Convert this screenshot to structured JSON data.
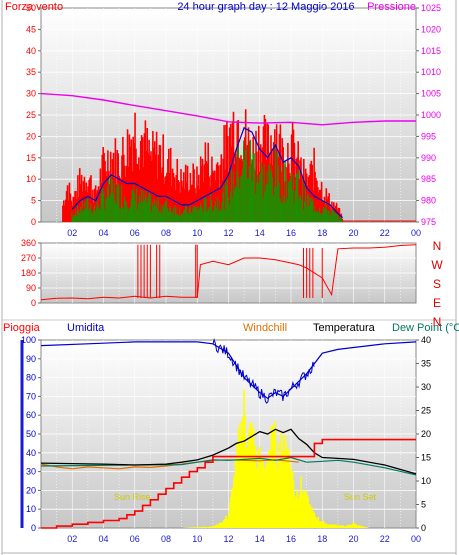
{
  "title": "24 hour graph day : 12 Maggio 2016",
  "colors": {
    "red": "#ff0000",
    "magenta": "#ee00ee",
    "blue": "#0000cc",
    "navy": "#1a1ad4",
    "orange": "#e07000",
    "black": "#000000",
    "teal": "#007a60",
    "yellow": "#ffff00",
    "green": "#00a000",
    "dirtick": "#dd0000"
  },
  "chart_data": [
    {
      "type": "line",
      "labels": {
        "left": "Forza vento",
        "right": "Pressione"
      },
      "y_left": {
        "ticks": [
          "0",
          "5",
          "10",
          "15",
          "20",
          "25",
          "30",
          "35",
          "40",
          "45",
          "50"
        ],
        "range": [
          0,
          50
        ]
      },
      "y_right": {
        "ticks": [
          "975",
          "980",
          "985",
          "990",
          "995",
          "1000",
          "1005",
          "1010",
          "1015",
          "1020",
          "1025"
        ],
        "range": [
          975,
          1025
        ]
      },
      "x_ticks": [
        "02",
        "04",
        "06",
        "08",
        "10",
        "12",
        "14",
        "16",
        "18",
        "20",
        "22",
        "00"
      ],
      "x_range": [
        0,
        24
      ],
      "series": [
        {
          "key": "gust",
          "color": "red",
          "x": [
            1.4,
            1.7,
            2.0,
            2.5,
            3.0,
            3.5,
            4.0,
            4.5,
            5.0,
            5.5,
            6.0,
            6.5,
            7.0,
            7.5,
            8.0,
            8.5,
            9.0,
            9.5,
            10.0,
            10.5,
            11.0,
            11.5,
            12.0,
            12.5,
            13.0,
            13.5,
            14.0,
            14.5,
            15.0,
            15.5,
            16.0,
            16.5,
            17.0,
            17.5,
            18.0,
            18.5,
            19.0,
            19.3
          ],
          "y": [
            5,
            11,
            6,
            12,
            14,
            8,
            17,
            20,
            18,
            22,
            28,
            25,
            19,
            21,
            18,
            16,
            12,
            14,
            12,
            20,
            15,
            18,
            25,
            31,
            27,
            20,
            25,
            22,
            28,
            20,
            23,
            17,
            12,
            16,
            10,
            6,
            4,
            1
          ]
        },
        {
          "key": "avg",
          "color": "blue",
          "x": [
            2.0,
            2.5,
            3.0,
            3.5,
            4.0,
            4.5,
            5.0,
            5.5,
            6.0,
            6.5,
            7.0,
            7.5,
            8.0,
            8.5,
            9.0,
            9.5,
            10.0,
            10.5,
            11.0,
            11.5,
            12.0,
            12.5,
            13.0,
            13.5,
            14.0,
            14.5,
            15.0,
            15.5,
            16.0,
            16.5,
            17.0,
            17.5,
            18.0,
            18.5,
            19.0,
            19.3
          ],
          "y": [
            3,
            5,
            6,
            5,
            9,
            11,
            10,
            9,
            9,
            8,
            7,
            6,
            6,
            5,
            4,
            4,
            5,
            6,
            7,
            8,
            11,
            17,
            22,
            21,
            17,
            15,
            18,
            14,
            15,
            13,
            8,
            6,
            5,
            4,
            2,
            1
          ]
        },
        {
          "key": "pressure",
          "color": "magenta",
          "axis": "right",
          "x": [
            0,
            2,
            4,
            6,
            8,
            10,
            12,
            14,
            16,
            18,
            20,
            22,
            24
          ],
          "y": [
            1005,
            1004.5,
            1003.5,
            1002.2,
            1001,
            999.8,
            998.4,
            998.1,
            998.3,
            997.7,
            998.3,
            998.6,
            998.6
          ]
        }
      ]
    },
    {
      "type": "scatter",
      "labels": {
        "right": [
          "N",
          "W",
          "S",
          "E",
          "N"
        ]
      },
      "y_left": {
        "ticks": [
          "0",
          "90",
          "180",
          "270",
          "360"
        ],
        "range": [
          0,
          360
        ]
      },
      "x_range": [
        0,
        24
      ],
      "series": [
        {
          "key": "direction",
          "color": "red",
          "x": [
            0,
            1,
            2,
            3,
            4,
            5,
            6,
            7,
            8,
            9,
            10,
            10.2,
            11,
            12,
            13,
            14,
            15,
            16,
            16.5,
            17,
            18,
            18.6,
            19,
            20,
            21,
            22,
            23,
            24
          ],
          "y": [
            20,
            28,
            30,
            25,
            35,
            30,
            40,
            30,
            40,
            35,
            35,
            230,
            250,
            230,
            270,
            270,
            260,
            240,
            230,
            210,
            150,
            50,
            325,
            330,
            330,
            335,
            345,
            350
          ]
        }
      ]
    },
    {
      "type": "line",
      "labels": {
        "left": "Pioggia",
        "left2": "Umidita",
        "windchill": "Windchill",
        "temp": "Temperatura",
        "dew": "Dew Point (°C"
      },
      "annotations": {
        "sunrise": "Sun Rise",
        "sunset": "Sun Set"
      },
      "y_left": {
        "ticks": [
          "0",
          "10",
          "20",
          "30",
          "40",
          "50",
          "60",
          "70",
          "80",
          "90",
          "100"
        ],
        "range": [
          0,
          100
        ]
      },
      "y_right": {
        "ticks": [
          "0",
          "5",
          "10",
          "15",
          "20",
          "25",
          "30",
          "35",
          "40"
        ],
        "range": [
          0,
          40
        ]
      },
      "x_ticks": [
        "02",
        "04",
        "06",
        "08",
        "10",
        "12",
        "14",
        "16",
        "18",
        "20",
        "22",
        "00"
      ],
      "x_range": [
        0,
        24
      ],
      "series": [
        {
          "key": "humidity",
          "color": "blue",
          "axis": "left",
          "x": [
            0,
            3,
            6,
            9,
            10,
            11,
            12,
            13,
            14,
            14.5,
            15,
            15.5,
            16,
            17,
            18,
            19,
            20,
            22,
            24
          ],
          "y": [
            97,
            98,
            99,
            99,
            99,
            98,
            93,
            80,
            72,
            69,
            72,
            70,
            74,
            82,
            93,
            95,
            96,
            98,
            99
          ]
        },
        {
          "key": "temperature",
          "color": "black",
          "axis": "right",
          "x": [
            0,
            2,
            4,
            6,
            8,
            9,
            10,
            11,
            12,
            12.5,
            13,
            14,
            14.5,
            15,
            15.5,
            16,
            16.5,
            17,
            17.5,
            18,
            19,
            20,
            22,
            24
          ],
          "y": [
            13.8,
            13.7,
            13.6,
            13.4,
            13.6,
            14,
            14.5,
            15.5,
            17,
            18,
            18.5,
            20.5,
            20,
            21,
            20.3,
            21,
            19,
            17.8,
            16,
            15,
            14.8,
            14.6,
            13.4,
            11.5
          ]
        },
        {
          "key": "dewpoint",
          "color": "teal",
          "axis": "right",
          "x": [
            0,
            3,
            6,
            9,
            10,
            11,
            12,
            13,
            14,
            15,
            16,
            17,
            18,
            19,
            20,
            22,
            24
          ],
          "y": [
            13.2,
            13.3,
            13.4,
            13.5,
            14,
            14.5,
            14.4,
            14.6,
            14.8,
            14.4,
            15,
            14,
            14.2,
            14.4,
            14,
            12.8,
            11.3
          ]
        },
        {
          "key": "windchill",
          "color": "orange",
          "axis": "right",
          "x": [
            0,
            1,
            2,
            3,
            4,
            5,
            6,
            7,
            8,
            9,
            10,
            10.5,
            11,
            12,
            13,
            14,
            15,
            16,
            16.5
          ],
          "y": [
            13.6,
            13,
            12.6,
            13,
            12.8,
            12.6,
            13,
            12.9,
            13.2,
            13.6,
            14,
            14.2,
            14.4,
            14.5,
            14.4,
            14.3,
            14.5,
            14.2,
            14
          ]
        },
        {
          "key": "rain",
          "color": "red",
          "axis": "left",
          "x": [
            0,
            1,
            2,
            3,
            4,
            5,
            5.5,
            6,
            6.5,
            7,
            7.5,
            8,
            8.5,
            9,
            9.5,
            10,
            10.5,
            11,
            12,
            13,
            14,
            15,
            16,
            17,
            17.5,
            18,
            24
          ],
          "y": [
            0,
            1,
            2,
            3,
            4,
            5,
            7,
            9,
            12,
            15,
            18,
            21,
            24,
            27,
            30,
            32,
            35,
            38,
            38,
            38,
            38,
            38,
            38,
            38,
            45,
            47,
            47
          ]
        },
        {
          "key": "solar",
          "color": "yellow",
          "axis": "left",
          "type": "area",
          "x": [
            0,
            9,
            10,
            11,
            11.5,
            12,
            12.5,
            12.8,
            13,
            13.3,
            13.5,
            13.8,
            14,
            14.3,
            14.6,
            15,
            15.3,
            15.6,
            16,
            16.3,
            16.6,
            17,
            17.5,
            18,
            18.5,
            19,
            19.5,
            20,
            20.5,
            21,
            22,
            24
          ],
          "y": [
            0,
            0,
            0.5,
            1,
            3,
            8,
            40,
            65,
            75,
            58,
            62,
            38,
            48,
            33,
            52,
            55,
            45,
            60,
            40,
            22,
            28,
            18,
            8,
            4,
            2,
            2,
            1,
            3,
            1,
            0,
            0,
            0
          ]
        }
      ]
    }
  ]
}
